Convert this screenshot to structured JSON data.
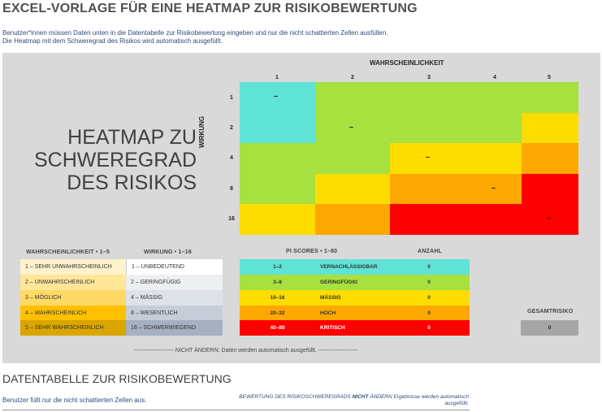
{
  "title": "EXCEL-VORLAGE FÜR EINE HEATMAP ZUR RISIKOBEWERTUNG",
  "intro": {
    "line1": "Benutzer*innen müssen Daten unten in die Datentabelle zur Risikobewertung eingeben und nur die nicht schattierten Zellen ausfüllen.",
    "line2": "Die Heatmap mit dem Schweregrad des Risikos wird automatisch ausgefüllt."
  },
  "heatmap": {
    "title_line1": "HEATMAP ZU",
    "title_line2": "SCHWEREGRAD",
    "title_line3": "DES RISIKOS",
    "x_axis_title": "WAHRSCHEINLICHKEIT",
    "y_axis_title": "WIRKUNG",
    "x_labels": [
      "1",
      "2",
      "3",
      "4",
      "5"
    ],
    "y_labels": [
      "1",
      "2",
      "4",
      "8",
      "16"
    ],
    "marker": "–"
  },
  "colors": {
    "cyan": "#5FE3D6",
    "green": "#A6E13F",
    "yellow": "#FDDC00",
    "orange": "#FDA800",
    "red": "#FD0000",
    "grey": "#A6A6A6"
  },
  "likelihood": {
    "header": "WAHRSCHEINLICHKEIT   •   1–5",
    "items": [
      "1 – SEHR UNWAHRSCHEINLICH",
      "2 – UNWAHRSCHEINLICH",
      "3 – MÖGLICH",
      "4 – WAHRSCHEINLICH",
      "5 – SEHR WAHRSCHEINLICH"
    ]
  },
  "impact": {
    "header": "WIRKUNG   •   1–16",
    "items": [
      "1 – UNBEDEUTEND",
      "2 – GERINGFÜGIG",
      "4 – MÄSSIG",
      "8 – WESENTLICH",
      "16 – SCHWERWIEGEND"
    ]
  },
  "pi_scores": {
    "header": "PI SCORES  •  1–80",
    "count_header": "ANZAHL",
    "rows": [
      {
        "range": "1–2",
        "label": "VERNACHLÄSSIGBAR",
        "count": "0"
      },
      {
        "range": "3–8",
        "label": "GERINGFÜGIG",
        "count": "0"
      },
      {
        "range": "10–16",
        "label": "MÄSSIG",
        "count": "0"
      },
      {
        "range": "20–32",
        "label": "HOCH",
        "count": "0"
      },
      {
        "range": "40–80",
        "label": "KRITISCH",
        "count": "0"
      }
    ]
  },
  "total": {
    "header": "GESAMTRISIKO",
    "value": "0"
  },
  "note": "--------------------- NICHT ÄNDERN; Daten werden automatisch ausgefüllt. ---------------------",
  "datatable": {
    "title": "DATENTABELLE ZUR RISIKOBEWERTUNG",
    "subtitle": "Benutzer füllt nur die nicht schattierten Zellen aus.",
    "right_note_pre": "BEWERTUNG DES RISIKOSCHWEREGRADS ",
    "right_note_bold": "NICHT",
    "right_note_post": " ÄNDERN Ergebnisse werden automatisch ausgefüllt."
  }
}
